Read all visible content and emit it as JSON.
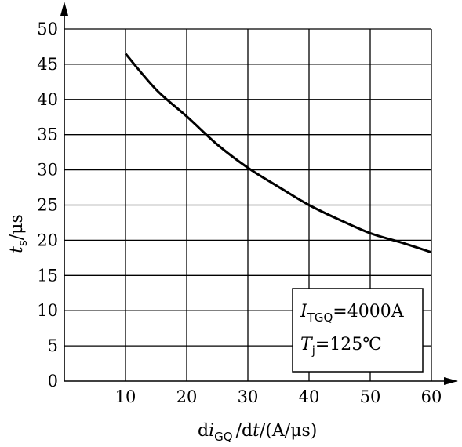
{
  "chart_data": {
    "type": "line",
    "x_ticks": [
      "10",
      "20",
      "30",
      "40",
      "50",
      "60"
    ],
    "y_ticks": [
      "0",
      "5",
      "10",
      "15",
      "20",
      "25",
      "30",
      "35",
      "40",
      "45",
      "50"
    ],
    "xlim": [
      0,
      60
    ],
    "ylim": [
      0,
      50
    ],
    "grid": true,
    "xlabel": {
      "d": "d",
      "i": "i",
      "sub": "GQ",
      "mid": "/d",
      "t": "t",
      "unit": "/(A/μs)"
    },
    "ylabel": {
      "t": "t",
      "sub": "s",
      "unit": "/μs"
    },
    "series": [
      {
        "x": [
          10,
          15,
          20,
          25,
          30,
          35,
          40,
          45,
          50,
          55,
          60
        ],
        "y": [
          46.5,
          41.4,
          37.6,
          33.6,
          30.3,
          27.6,
          25.0,
          22.9,
          21.0,
          19.7,
          18.3
        ]
      }
    ],
    "annotations": [
      {
        "main": "I",
        "sub": "TGQ",
        "rest": "=4000A"
      },
      {
        "main": "T",
        "sub": "j",
        "rest": "=125℃"
      }
    ]
  }
}
